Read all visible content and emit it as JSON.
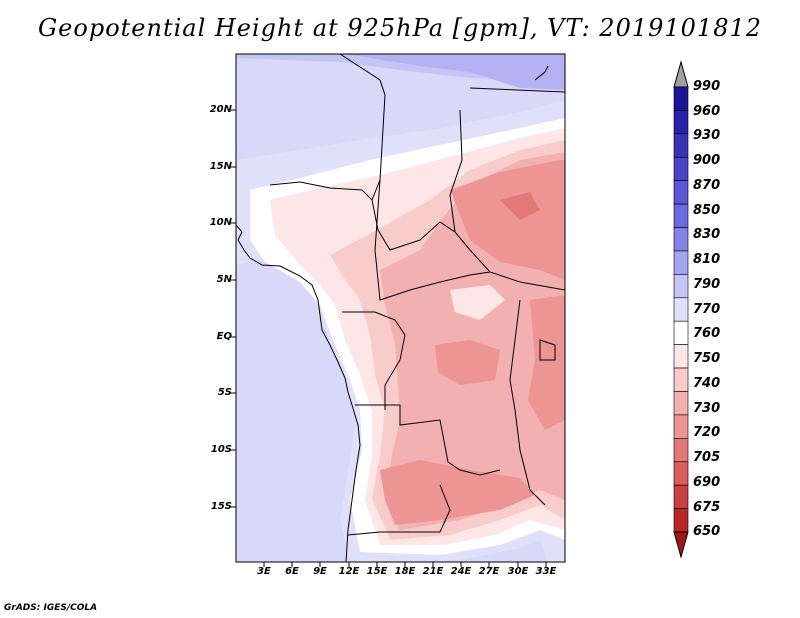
{
  "title": "Geopotential Height at 925hPa [gpm], VT: 2019101812",
  "footer": "GrADS: IGES/COLA",
  "chart_data": {
    "type": "heatmap",
    "title": "Geopotential Height at 925hPa [gpm], VT: 2019101812",
    "variable": "Geopotential Height",
    "level": "925hPa",
    "units": "gpm",
    "valid_time": "2019101812",
    "lon_range": [
      0,
      35
    ],
    "lat_range": [
      -20,
      25
    ],
    "lat_ticks": [
      "20N",
      "15N",
      "10N",
      "5N",
      "EQ",
      "5S",
      "10S",
      "15S"
    ],
    "lon_ticks": [
      "3E",
      "6E",
      "9E",
      "12E",
      "15E",
      "18E",
      "21E",
      "24E",
      "27E",
      "30E",
      "33E"
    ],
    "colorbar": {
      "labels": [
        "990",
        "960",
        "930",
        "900",
        "870",
        "850",
        "830",
        "810",
        "790",
        "770",
        "760",
        "750",
        "740",
        "730",
        "720",
        "705",
        "690",
        "675",
        "650"
      ],
      "colors": [
        "#a0a0a0",
        "#1e1496",
        "#2a22a8",
        "#3a32ba",
        "#4a44c8",
        "#5a56d4",
        "#6c6ade",
        "#8482e8",
        "#a2a2f0",
        "#c4c4f6",
        "#e0e0fa",
        "#ffffff",
        "#fde6e6",
        "#f9cccc",
        "#f3b0b0",
        "#ed9494",
        "#e37878",
        "#d85c5c",
        "#c84040",
        "#b82828",
        "#a01818"
      ]
    }
  }
}
